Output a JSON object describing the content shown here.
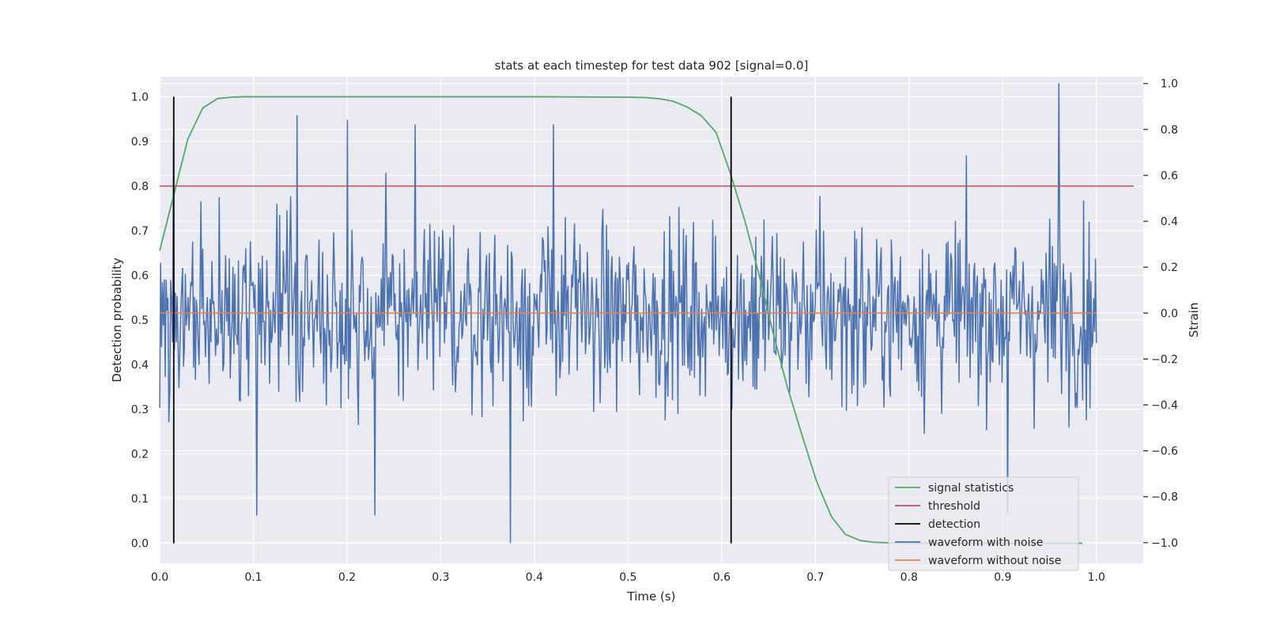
{
  "chart_data": {
    "type": "line",
    "title": "stats at each timestep for test data 902 [signal=0.0]",
    "xlabel": "Time (s)",
    "ylabel": "Detection probability",
    "y2label": "Strain",
    "xlim": [
      0.0,
      1.05
    ],
    "ylim": [
      -0.045,
      1.045
    ],
    "y2lim": [
      -1.09,
      1.03
    ],
    "xticks": [
      "0.0",
      "0.1",
      "0.2",
      "0.3",
      "0.4",
      "0.5",
      "0.6",
      "0.7",
      "0.8",
      "0.9",
      "1.0"
    ],
    "yticks": [
      "0.0",
      "0.1",
      "0.2",
      "0.3",
      "0.4",
      "0.5",
      "0.6",
      "0.7",
      "0.8",
      "0.9",
      "1.0"
    ],
    "y2ticks": [
      "−1.0",
      "−0.8",
      "−0.6",
      "−0.4",
      "−0.2",
      "0.0",
      "0.2",
      "0.4",
      "0.6",
      "0.8",
      "1.0"
    ],
    "grid": true,
    "legend_position": "lower-right",
    "series": [
      {
        "name": "signal statistics",
        "color": "#55a868",
        "axis": "left",
        "x": [
          0.0,
          0.015,
          0.03,
          0.046,
          0.062,
          0.077,
          0.092,
          0.2,
          0.3,
          0.4,
          0.5,
          0.52,
          0.535,
          0.548,
          0.563,
          0.578,
          0.594,
          0.609,
          0.625,
          0.64,
          0.655,
          0.67,
          0.686,
          0.701,
          0.717,
          0.732,
          0.748,
          0.763,
          0.778,
          0.8,
          0.9,
          0.985
        ],
        "y": [
          0.655,
          0.78,
          0.905,
          0.975,
          0.996,
          0.999,
          1.0,
          1.0,
          1.0,
          1.0,
          0.999,
          0.998,
          0.995,
          0.99,
          0.977,
          0.958,
          0.92,
          0.83,
          0.72,
          0.6,
          0.47,
          0.35,
          0.24,
          0.14,
          0.06,
          0.02,
          0.006,
          0.002,
          0.001,
          0.0,
          0.0,
          0.0
        ]
      },
      {
        "name": "threshold",
        "color": "#c44e52",
        "axis": "left",
        "x": [
          0.0,
          1.04
        ],
        "y": [
          0.8,
          0.8
        ]
      },
      {
        "name": "detection",
        "color": "#000000",
        "axis": "left",
        "type": "vlines",
        "x": [
          0.015,
          0.61
        ],
        "y_range": [
          0.0,
          1.0
        ]
      },
      {
        "name": "waveform with noise",
        "color": "#4c72b0",
        "axis": "right",
        "x_start": 0.0,
        "x_end": 1.0,
        "n_points": 1024,
        "y_min": -1.0,
        "y_max": 1.0,
        "peaks": [
          {
            "x": 0.015,
            "y": 0.76
          },
          {
            "x": 0.147,
            "y": 0.86
          },
          {
            "x": 0.2,
            "y": 0.84
          },
          {
            "x": 0.273,
            "y": 0.82
          },
          {
            "x": 0.374,
            "y": -1.0
          },
          {
            "x": 0.42,
            "y": 0.82
          },
          {
            "x": 0.96,
            "y": 1.0
          },
          {
            "x": 0.104,
            "y": -0.88
          },
          {
            "x": 0.23,
            "y": -0.88
          },
          {
            "x": 0.905,
            "y": -0.87
          }
        ]
      },
      {
        "name": "waveform without noise",
        "color": "#dd8452",
        "axis": "right",
        "x": [
          0.0,
          1.0
        ],
        "y": [
          0.0,
          0.0
        ]
      }
    ]
  }
}
